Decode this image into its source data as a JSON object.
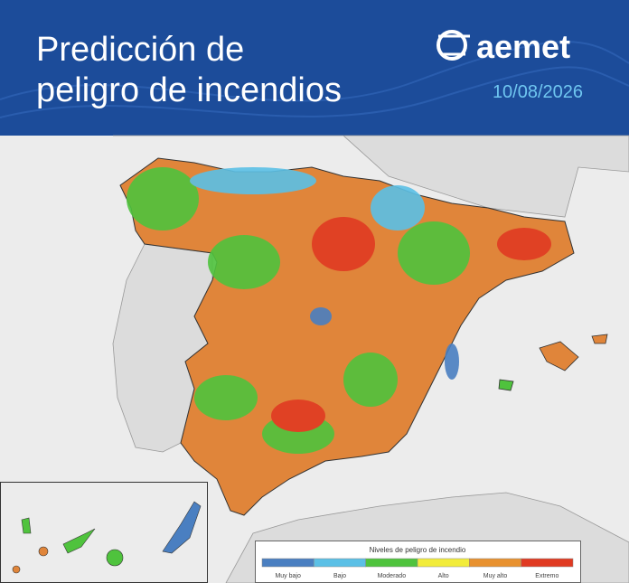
{
  "header": {
    "title_lines": [
      "Predicción de",
      "peligro de incendios"
    ],
    "logo": "aemet",
    "date": "10/08/2026"
  },
  "legend": {
    "title": "Niveles de peligro de incendio",
    "levels": [
      {
        "label": "Muy bajo",
        "color": "#4a7fc1"
      },
      {
        "label": "Bajo",
        "color": "#5bc0e6"
      },
      {
        "label": "Moderado",
        "color": "#4fc33d"
      },
      {
        "label": "Alto",
        "color": "#f2ec3a"
      },
      {
        "label": "Muy alto",
        "color": "#e8912f"
      },
      {
        "label": "Extremo",
        "color": "#e03a22"
      }
    ]
  }
}
